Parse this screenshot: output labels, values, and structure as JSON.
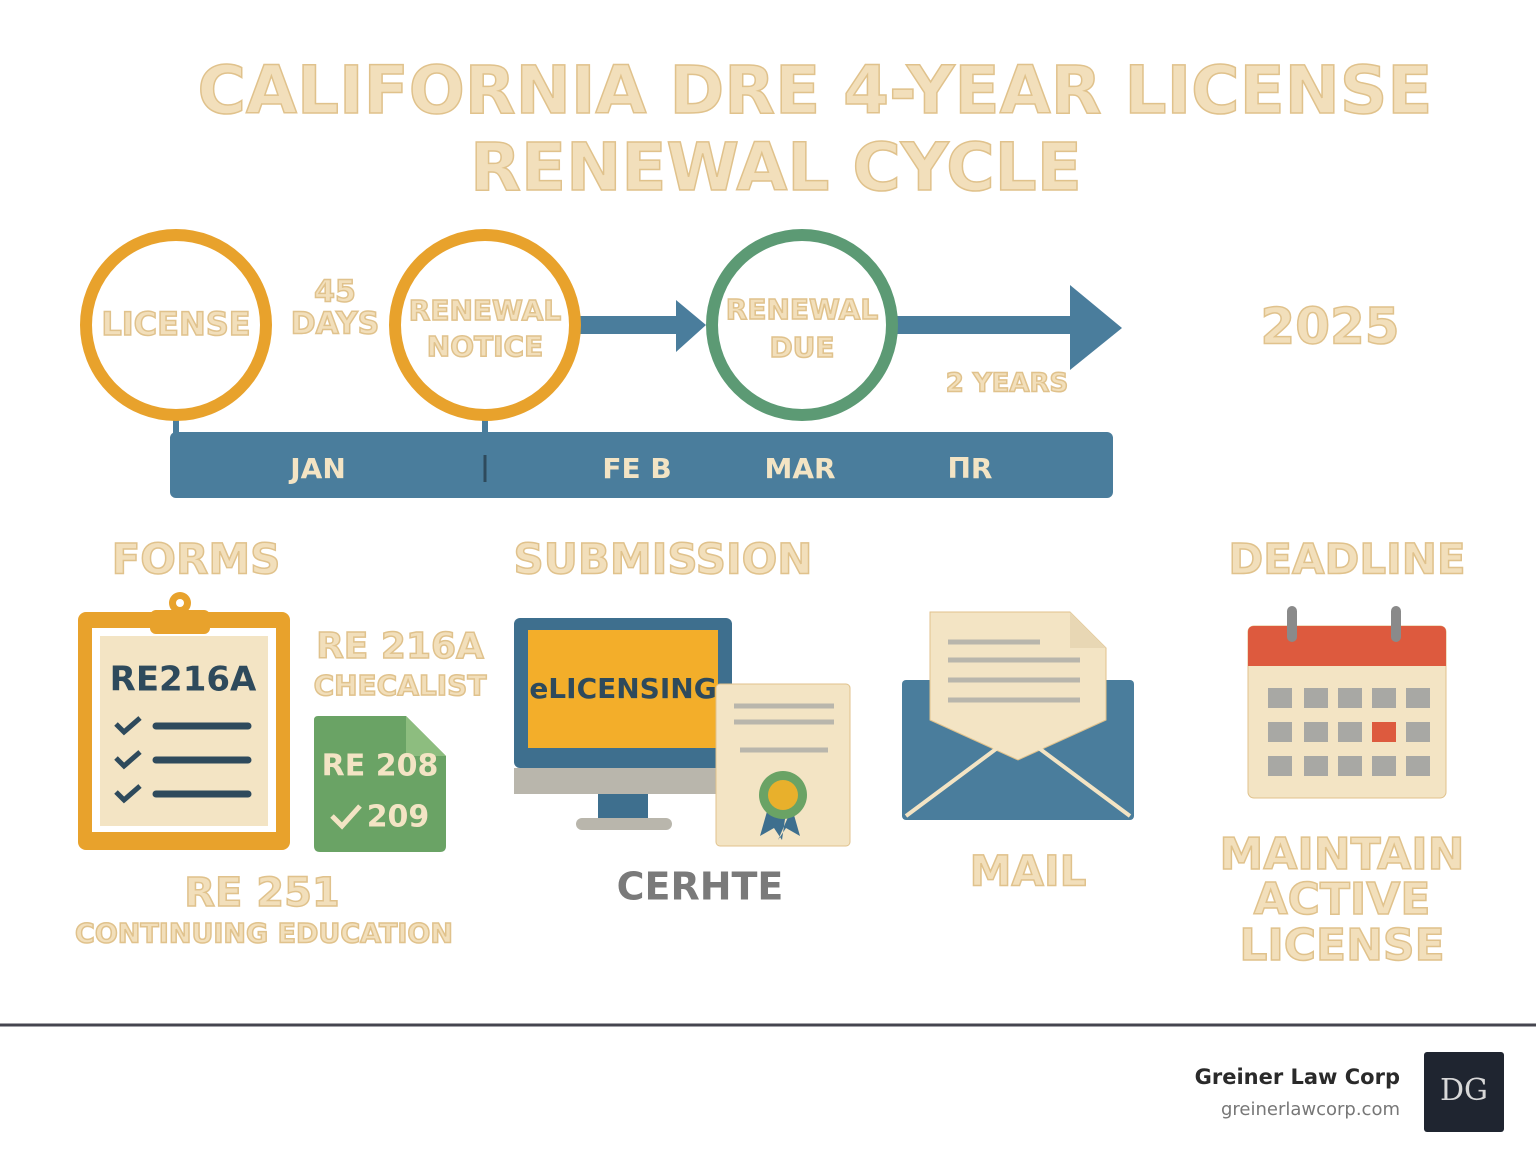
{
  "title": {
    "lines": [
      "CALIFORNIA DRE 4-YEAR LICENSE",
      "RENEWAL CYCLE"
    ]
  },
  "timeline": {
    "license": "LICENSE",
    "gap": [
      "45",
      "DAYS"
    ],
    "renewal_notice": [
      "RENEWAL",
      "NOTICE"
    ],
    "renewal_due": [
      "RENEWAL",
      "DUE"
    ],
    "period": "2 YEARS",
    "year": "2025",
    "months": [
      "JAN",
      "FE B",
      "MAR",
      "ΠR"
    ]
  },
  "sections": {
    "forms": {
      "heading": "FORMS",
      "clipboard": "RE216A",
      "note": [
        "RE 216A",
        "CHECALIST"
      ],
      "green_doc": [
        "RE 208",
        "209"
      ],
      "footer": [
        "RE 251",
        "CONTINUING EDUCATION"
      ]
    },
    "submission": {
      "heading": "SUBMISSION",
      "screen": "eLICENSING",
      "caption": "CERHTE",
      "mail": "MAIL"
    },
    "deadline": {
      "heading": "DEADLINE",
      "caption": [
        "MAINTAIN",
        "ACTIVE",
        "LICENSE"
      ]
    }
  },
  "footer": {
    "company": "Greiner Law Corp",
    "url": "greinerlawcorp.com",
    "logo": "DG"
  }
}
